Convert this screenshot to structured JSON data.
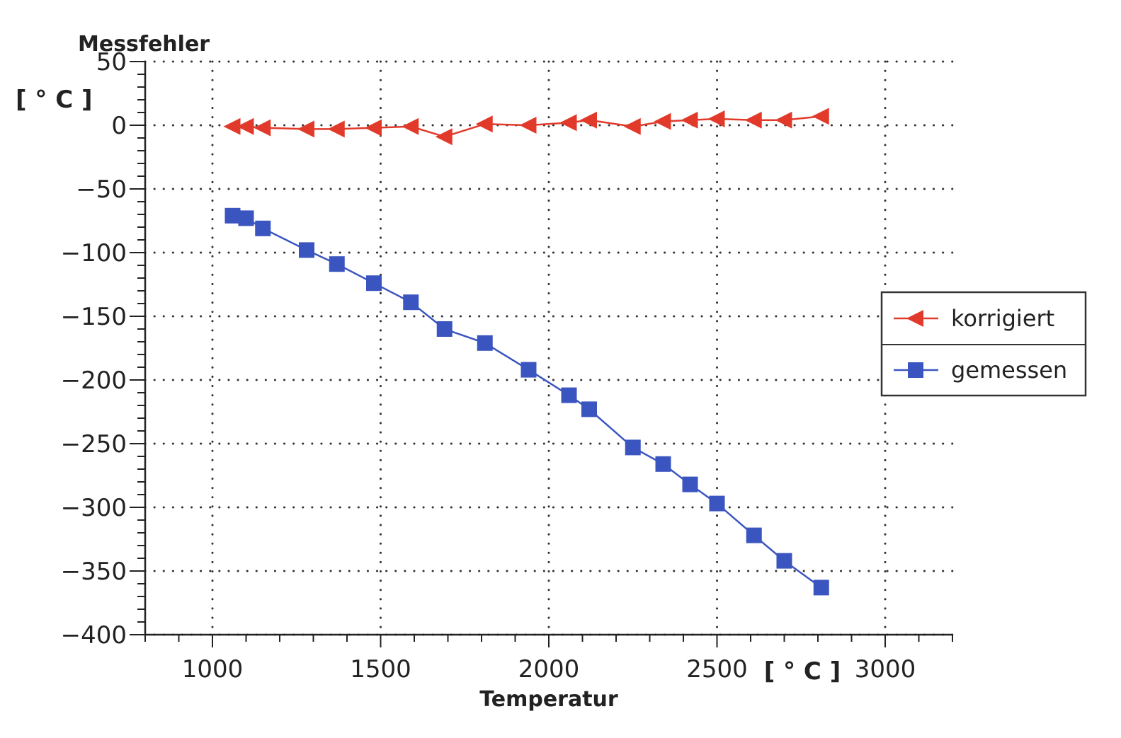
{
  "chart_data": {
    "type": "line",
    "ylabel": "Messfehler",
    "ylabel_unit": "[ ° C ]",
    "xlabel": "Temperatur",
    "xlabel_unit": "[ ° C ]",
    "xlim": [
      800,
      3200
    ],
    "ylim": [
      -400,
      50
    ],
    "x_ticks": [
      1000,
      1500,
      2000,
      2500,
      3000
    ],
    "x_tick_labels": [
      "1000",
      "1500",
      "2000",
      "2500",
      "3000"
    ],
    "y_ticks": [
      50,
      0,
      -50,
      -100,
      -150,
      -200,
      -250,
      -300,
      -350,
      -400
    ],
    "y_tick_labels": [
      "50",
      "0",
      "−50",
      "−100",
      "−150",
      "−200",
      "−250",
      "−300",
      "−350",
      "−400"
    ],
    "grid": true,
    "legend_position": "right",
    "series": [
      {
        "name": "korrigiert",
        "color": "#e23a2a",
        "marker": "triangle-left",
        "x": [
          1060,
          1100,
          1150,
          1280,
          1370,
          1480,
          1590,
          1690,
          1810,
          1940,
          2060,
          2120,
          2250,
          2340,
          2420,
          2500,
          2610,
          2700,
          2810
        ],
        "y": [
          -1,
          -1,
          -2,
          -3,
          -3,
          -2,
          -1,
          -9,
          1,
          0,
          2,
          4,
          -1,
          3,
          4,
          5,
          4,
          4,
          7
        ]
      },
      {
        "name": "gemessen",
        "color": "#3b55c0",
        "marker": "square",
        "x": [
          1060,
          1100,
          1150,
          1280,
          1370,
          1480,
          1590,
          1690,
          1810,
          1940,
          2060,
          2120,
          2250,
          2340,
          2420,
          2500,
          2610,
          2700,
          2810
        ],
        "y": [
          -71,
          -73,
          -81,
          -98,
          -109,
          -124,
          -139,
          -160,
          -171,
          -192,
          -212,
          -223,
          -253,
          -266,
          -282,
          -297,
          -322,
          -342,
          -363
        ]
      }
    ]
  }
}
